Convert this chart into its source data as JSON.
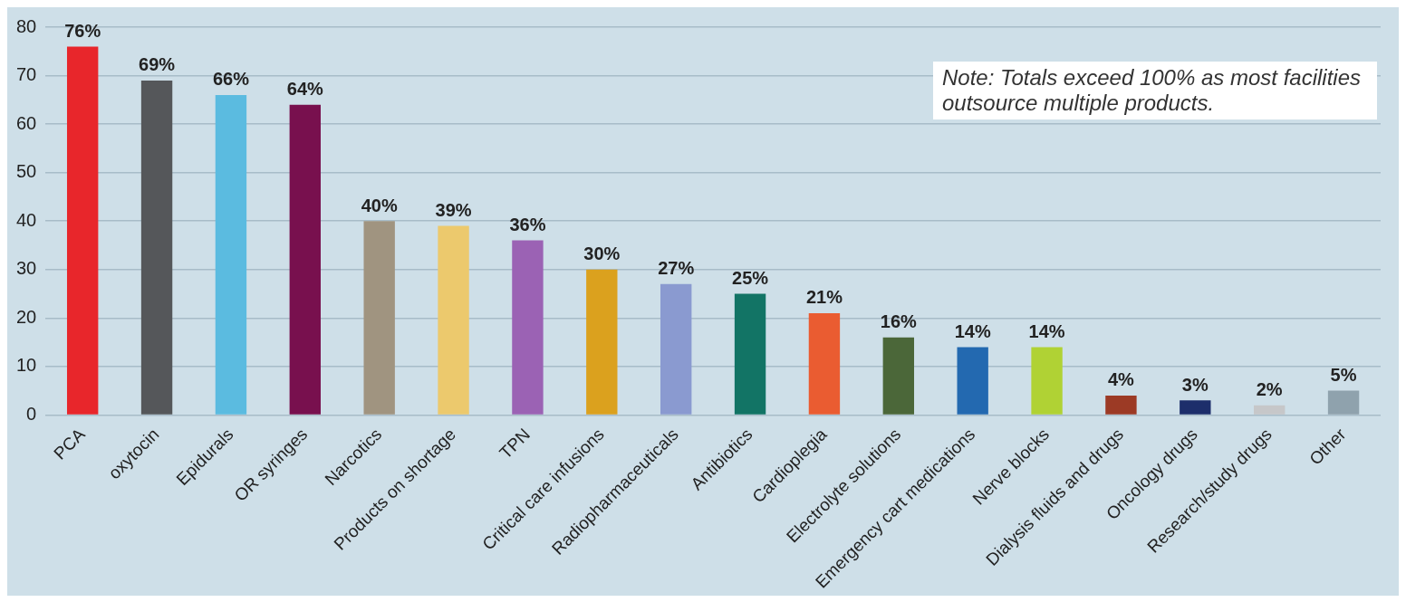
{
  "chart_data": {
    "type": "bar",
    "categories": [
      "PCA",
      "oxytocin",
      "Epidurals",
      "OR syringes",
      "Narcotics",
      "Products on shortage",
      "TPN",
      "Critical care infusions",
      "Radiopharmaceuticals",
      "Antibiotics",
      "Cardioplegia",
      "Electrolyte solutions",
      "Emergency cart medications",
      "Nerve blocks",
      "Dialysis fluids and drugs",
      "Oncology drugs",
      "Research/study drugs",
      "Other"
    ],
    "values": [
      76,
      69,
      66,
      64,
      40,
      39,
      36,
      30,
      27,
      25,
      21,
      16,
      14,
      14,
      4,
      3,
      2,
      5
    ],
    "colors": [
      "#e8262b",
      "#55575a",
      "#5bbbe0",
      "#78104e",
      "#a09480",
      "#ecc96d",
      "#9b62b4",
      "#dba11e",
      "#8a9ad0",
      "#127465",
      "#ea5c31",
      "#4b6739",
      "#2369b0",
      "#b0d234",
      "#9c3a25",
      "#1d2e6b",
      "#c6c7c9",
      "#8fa2ad"
    ],
    "value_labels": [
      "76%",
      "69%",
      "66%",
      "64%",
      "40%",
      "39%",
      "36%",
      "30%",
      "27%",
      "25%",
      "21%",
      "16%",
      "14%",
      "14%",
      "4%",
      "3%",
      "2%",
      "5%"
    ],
    "ylim": [
      0,
      80
    ],
    "yticks": [
      0,
      10,
      20,
      30,
      40,
      50,
      60,
      70,
      80
    ],
    "grid": "y",
    "legend": false,
    "annotations": [
      "Note: Totals exceed 100% as most facilities outsource multiple products."
    ]
  }
}
